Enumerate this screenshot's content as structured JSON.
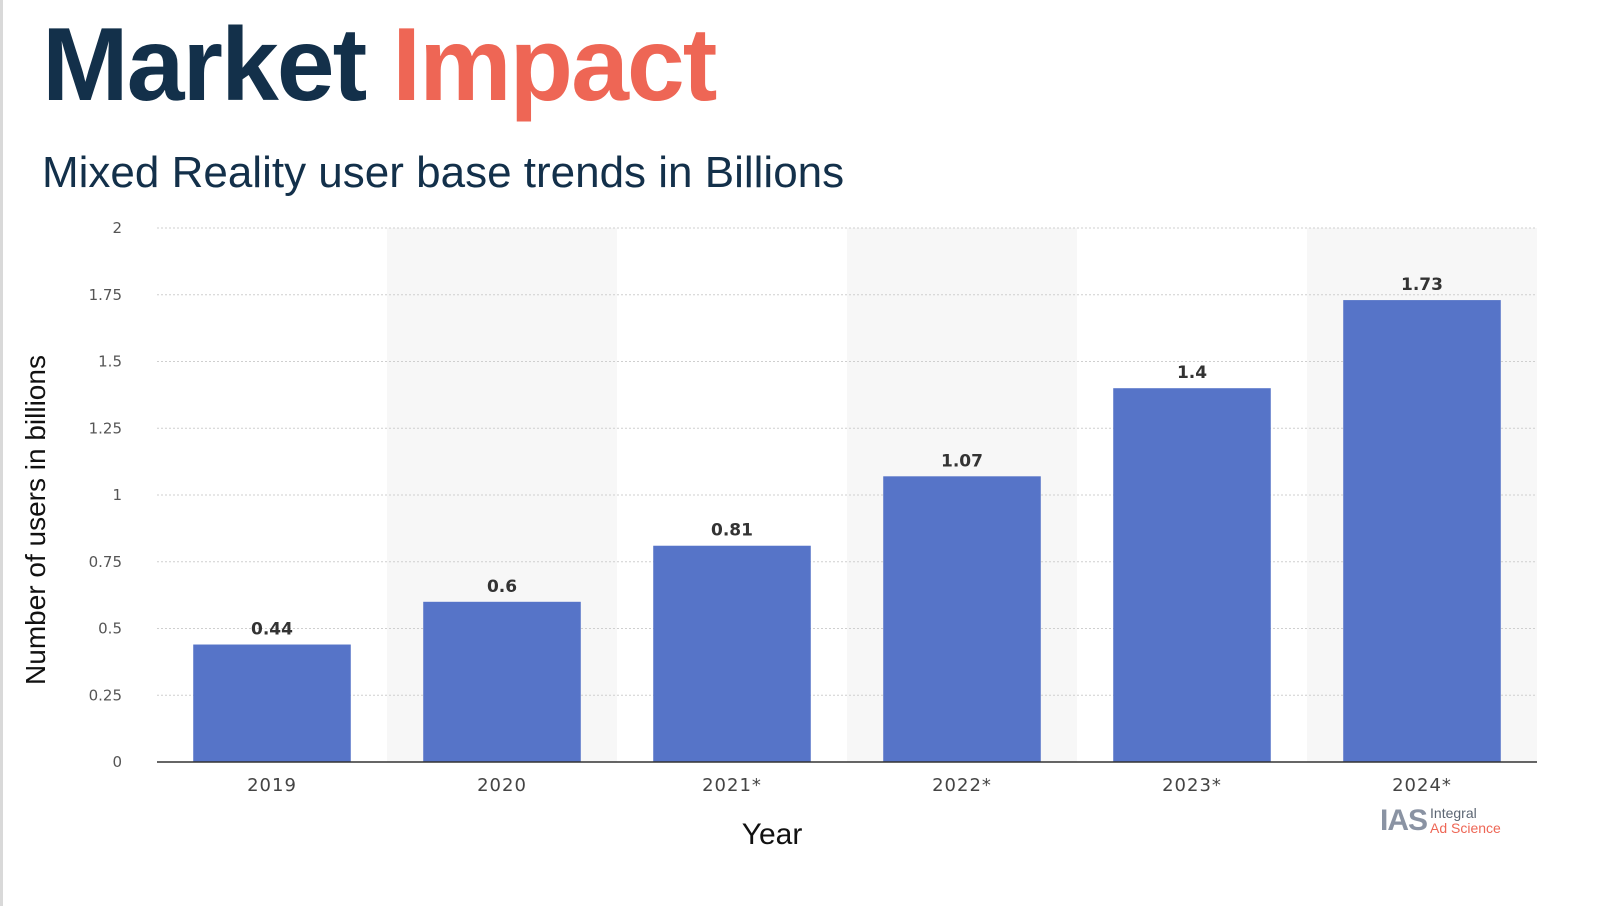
{
  "header": {
    "title_part1": "Market",
    "title_part2": "Impact",
    "subtitle": "Mixed Reality user base trends in Billions"
  },
  "colors": {
    "title_dark": "#13304a",
    "title_accent": "#ee6655",
    "bar": "#5674c8",
    "band": "#f7f7f7",
    "grid": "#cfcfcf"
  },
  "chart_data": {
    "type": "bar",
    "categories": [
      "2019",
      "2020",
      "2021*",
      "2022*",
      "2023*",
      "2024*"
    ],
    "values": [
      0.44,
      0.6,
      0.81,
      1.07,
      1.4,
      1.73
    ],
    "value_labels": [
      "0.44",
      "0.6",
      "0.81",
      "1.07",
      "1.4",
      "1.73"
    ],
    "xlabel": "Year",
    "ylabel": "Number of users in billions",
    "ylim": [
      0,
      2
    ],
    "yticks": [
      0,
      0.25,
      0.5,
      0.75,
      1,
      1.25,
      1.5,
      1.75,
      2
    ],
    "ytick_labels": [
      "0",
      "0.25",
      "0.5",
      "0.75",
      "1",
      "1.25",
      "1.5",
      "1.75",
      "2"
    ],
    "grid": true,
    "grid_style": "dotted horizontal",
    "alternating_column_bands": true
  },
  "logo": {
    "mark": "IAS",
    "line1": "Integral",
    "line2": "Ad Science"
  }
}
